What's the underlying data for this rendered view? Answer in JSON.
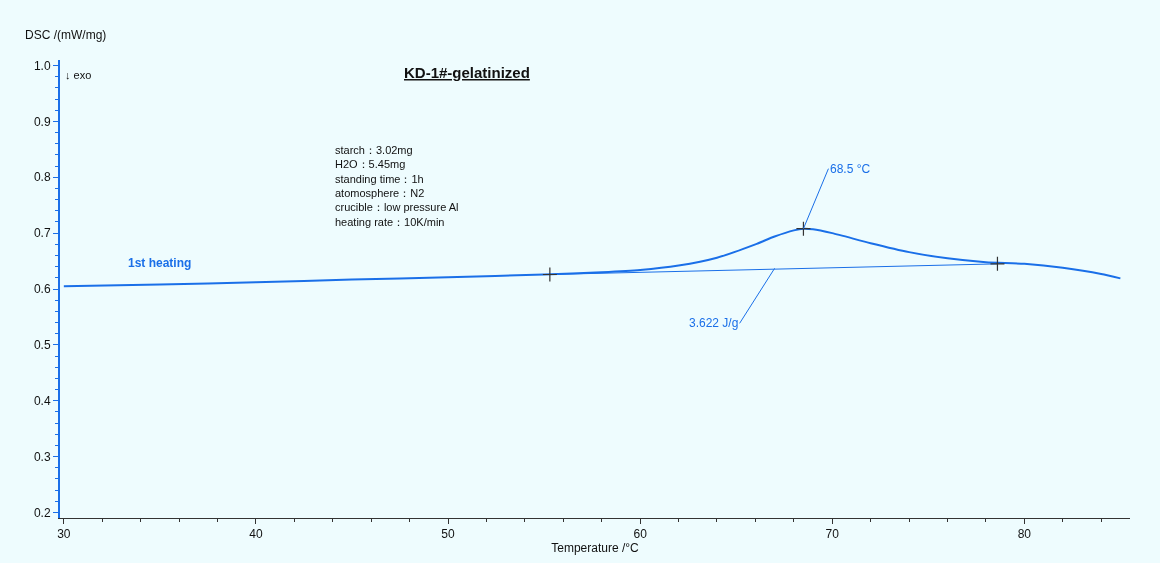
{
  "chart_data": {
    "type": "line",
    "title": "KD-1#-gelatinized",
    "xlabel": "Temperature /°C",
    "ylabel": "DSC /(mW/mg)",
    "xlim": [
      29.8,
      85.5
    ],
    "xticks": [
      30,
      40,
      50,
      60,
      70,
      80
    ],
    "ylim": [
      0.19,
      1.01
    ],
    "yticks": [
      0.2,
      0.3,
      0.4,
      0.5,
      0.6,
      0.7,
      0.8,
      0.9,
      {
        "value": 1,
        "label": "1.0"
      }
    ],
    "grid": false,
    "legend": false,
    "line_style": "solid",
    "series": [
      {
        "name": "1st heating",
        "color": "#1a6fe8",
        "x": [
          30,
          35,
          40,
          45,
          50,
          55,
          58,
          60,
          62,
          64,
          66,
          67,
          68,
          68.5,
          69,
          70,
          72,
          74,
          76,
          78,
          80,
          82,
          84,
          85
        ],
        "values": [
          0.605,
          0.608,
          0.612,
          0.617,
          0.621,
          0.626,
          0.63,
          0.634,
          0.642,
          0.656,
          0.68,
          0.694,
          0.705,
          0.708,
          0.707,
          0.7,
          0.682,
          0.666,
          0.655,
          0.648,
          0.645,
          0.638,
          0.627,
          0.619
        ]
      },
      {
        "color": "#1a6fe8",
        "x": [
          55.3,
          78.6
        ],
        "values": [
          0.626,
          0.645
        ]
      },
      {
        "type": "scatter",
        "marker": "cross",
        "color": "#333333",
        "x": [
          55.3,
          68.5,
          78.6
        ],
        "values": [
          0.626,
          0.708,
          0.645
        ]
      }
    ],
    "annotations": [
      {
        "text": "68.5 °C",
        "x": 68.5,
        "y": 0.708
      },
      {
        "text": "3.622 J/g",
        "x": 67.0,
        "y": 0.637
      },
      "↓ exo",
      "starch：3.02mg\nH2O：5.45mg\nstanding time：1h\natomosphere：N2\ncrucible：low pressure Al\nheating rate：10K/min"
    ]
  }
}
